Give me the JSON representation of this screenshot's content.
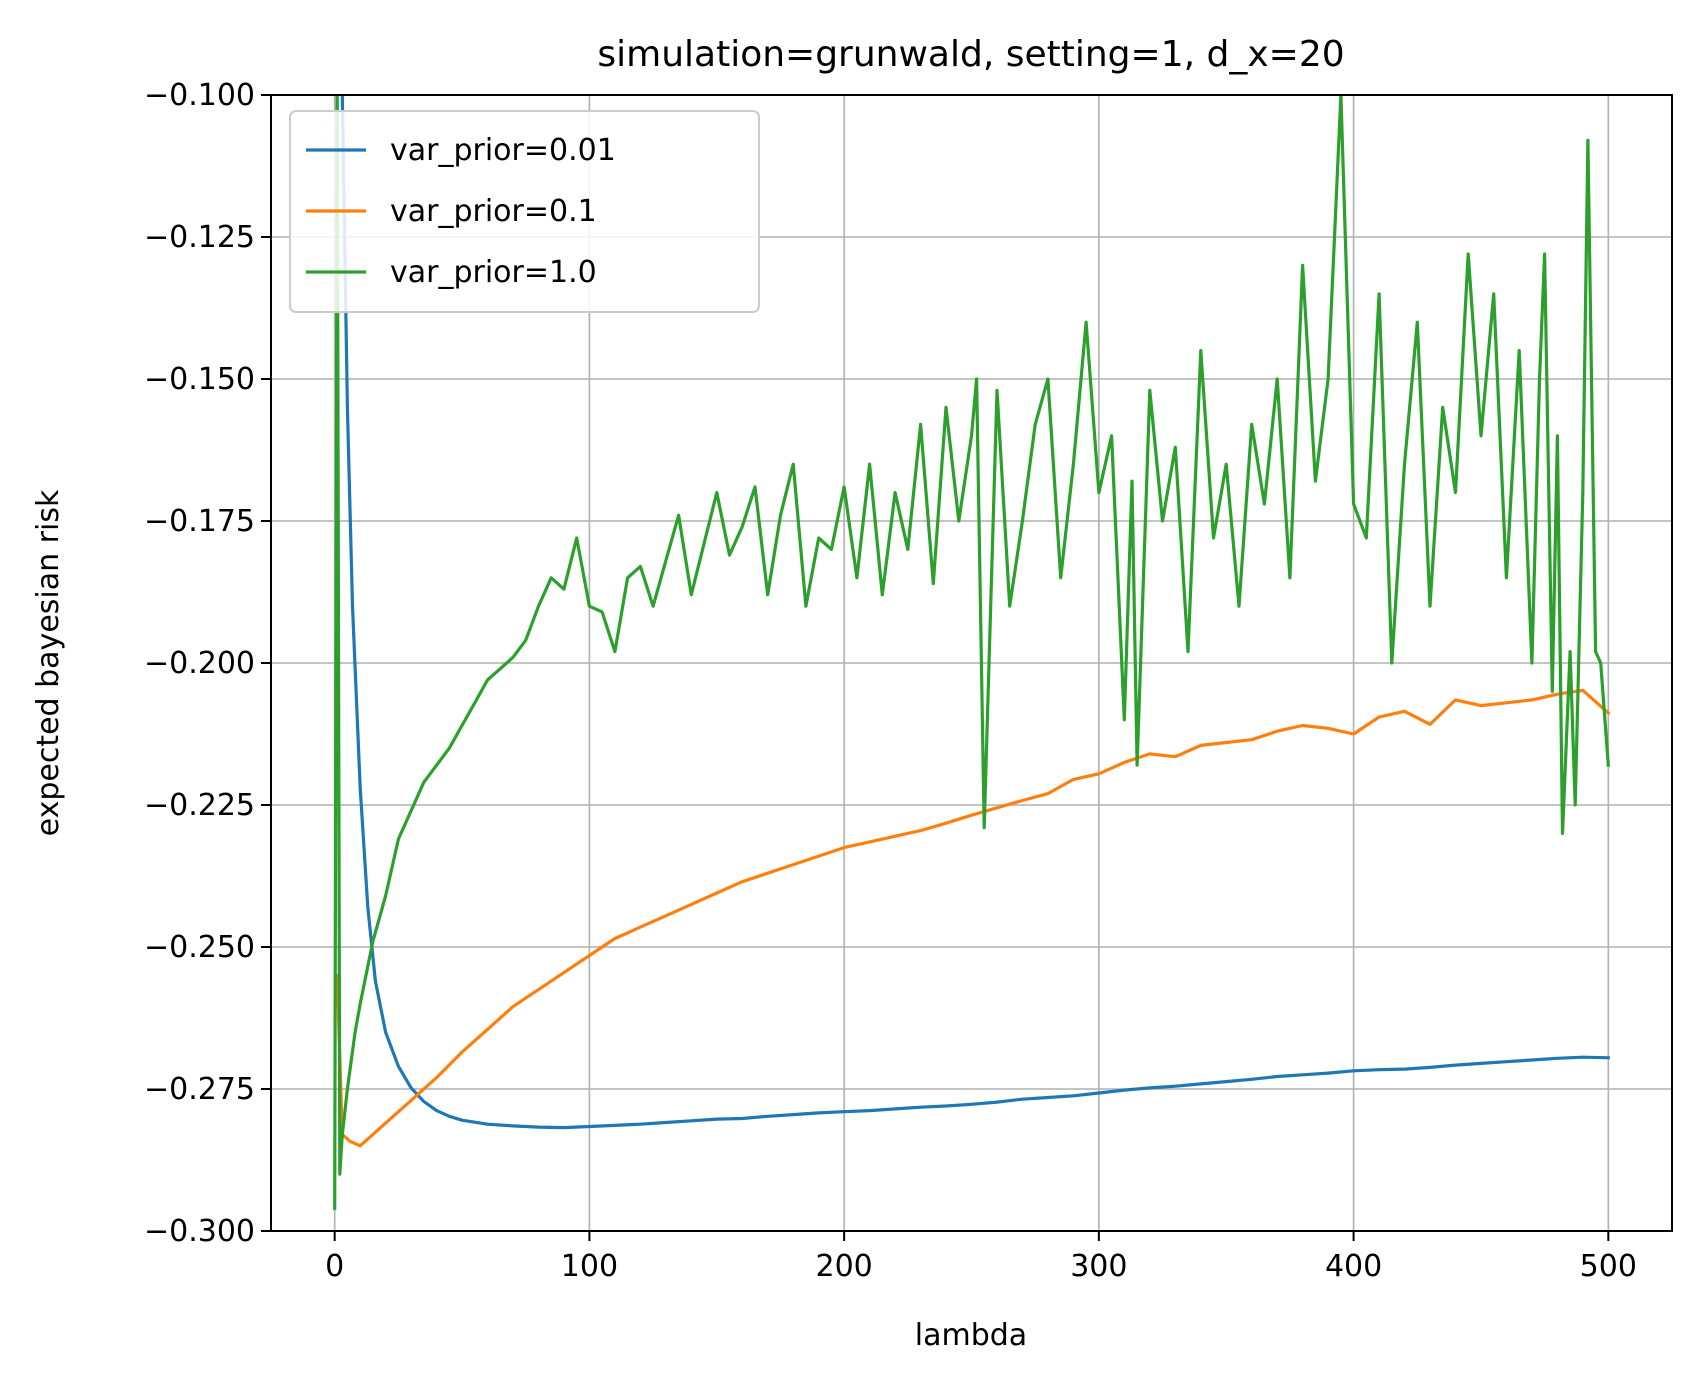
{
  "chart_data": {
    "type": "line",
    "title": "simulation=grunwald, setting=1, d_x=20",
    "xlabel": "lambda",
    "ylabel": "expected bayesian risk",
    "xlim": [
      -25,
      525
    ],
    "ylim": [
      -0.3,
      -0.1
    ],
    "xticks": [
      0,
      100,
      200,
      300,
      400,
      500
    ],
    "xtick_labels": [
      "0",
      "100",
      "200",
      "300",
      "400",
      "500"
    ],
    "yticks": [
      -0.3,
      -0.275,
      -0.25,
      -0.225,
      -0.2,
      -0.175,
      -0.15,
      -0.125,
      -0.1
    ],
    "ytick_labels": [
      "−0.300",
      "−0.275",
      "−0.250",
      "−0.225",
      "−0.200",
      "−0.175",
      "−0.150",
      "−0.125",
      "−0.100"
    ],
    "grid": true,
    "legend_position": "upper-left",
    "series": [
      {
        "name": "var_prior=0.01",
        "color": "#1f77b4",
        "x": [
          1,
          3,
          5,
          7,
          10,
          13,
          16,
          20,
          25,
          30,
          35,
          40,
          45,
          50,
          60,
          70,
          80,
          90,
          100,
          110,
          120,
          130,
          140,
          150,
          160,
          170,
          180,
          190,
          200,
          210,
          220,
          230,
          240,
          250,
          260,
          270,
          280,
          290,
          300,
          310,
          320,
          330,
          340,
          350,
          360,
          370,
          380,
          390,
          400,
          410,
          420,
          430,
          440,
          450,
          460,
          470,
          480,
          490,
          500
        ],
        "y": [
          -0.09,
          -0.1,
          -0.155,
          -0.19,
          -0.222,
          -0.243,
          -0.256,
          -0.265,
          -0.271,
          -0.2748,
          -0.2772,
          -0.2788,
          -0.2798,
          -0.2805,
          -0.2812,
          -0.2815,
          -0.2817,
          -0.2818,
          -0.2816,
          -0.2814,
          -0.2812,
          -0.2809,
          -0.2806,
          -0.2803,
          -0.2802,
          -0.2798,
          -0.2795,
          -0.2792,
          -0.279,
          -0.2788,
          -0.2785,
          -0.2782,
          -0.278,
          -0.2777,
          -0.2773,
          -0.2768,
          -0.2765,
          -0.2762,
          -0.2757,
          -0.2752,
          -0.2748,
          -0.2745,
          -0.2741,
          -0.2737,
          -0.2733,
          -0.2728,
          -0.2725,
          -0.2722,
          -0.2718,
          -0.2716,
          -0.2715,
          -0.2712,
          -0.2708,
          -0.2705,
          -0.2702,
          -0.2699,
          -0.2696,
          -0.2694,
          -0.2695
        ]
      },
      {
        "name": "var_prior=0.1",
        "color": "#ff7f0e",
        "x": [
          1,
          3,
          6,
          10,
          15,
          20,
          30,
          40,
          50,
          60,
          70,
          80,
          90,
          100,
          110,
          120,
          130,
          140,
          150,
          160,
          170,
          180,
          190,
          200,
          210,
          220,
          230,
          240,
          250,
          260,
          270,
          280,
          290,
          300,
          310,
          320,
          330,
          340,
          350,
          360,
          370,
          380,
          390,
          400,
          410,
          420,
          430,
          440,
          450,
          460,
          470,
          480,
          490,
          500
        ],
        "y": [
          -0.255,
          -0.283,
          -0.2842,
          -0.285,
          -0.283,
          -0.281,
          -0.277,
          -0.273,
          -0.2685,
          -0.2645,
          -0.2605,
          -0.2575,
          -0.2545,
          -0.2515,
          -0.2485,
          -0.2465,
          -0.2445,
          -0.2425,
          -0.2405,
          -0.2385,
          -0.237,
          -0.2355,
          -0.234,
          -0.2325,
          -0.2315,
          -0.2305,
          -0.2295,
          -0.2282,
          -0.2268,
          -0.2255,
          -0.2242,
          -0.223,
          -0.2205,
          -0.2195,
          -0.2175,
          -0.216,
          -0.2165,
          -0.2145,
          -0.214,
          -0.2135,
          -0.212,
          -0.211,
          -0.2115,
          -0.2125,
          -0.2095,
          -0.2085,
          -0.2108,
          -0.2065,
          -0.2075,
          -0.207,
          -0.2065,
          -0.2055,
          -0.2048,
          -0.2088
        ]
      },
      {
        "name": "var_prior=1.0",
        "color": "#2ca02c",
        "x": [
          0,
          1,
          2,
          3,
          5,
          8,
          10,
          15,
          20,
          25,
          30,
          35,
          40,
          45,
          50,
          55,
          60,
          65,
          70,
          75,
          80,
          85,
          90,
          95,
          100,
          105,
          110,
          115,
          120,
          125,
          130,
          135,
          140,
          145,
          150,
          155,
          160,
          165,
          170,
          175,
          180,
          185,
          190,
          195,
          200,
          205,
          210,
          215,
          220,
          225,
          230,
          235,
          240,
          245,
          250,
          252,
          255,
          260,
          265,
          270,
          275,
          280,
          285,
          290,
          295,
          300,
          305,
          310,
          313,
          315,
          320,
          325,
          330,
          335,
          340,
          345,
          350,
          355,
          360,
          365,
          370,
          375,
          380,
          385,
          390,
          395,
          400,
          405,
          410,
          415,
          420,
          425,
          430,
          435,
          440,
          445,
          450,
          455,
          460,
          465,
          470,
          473,
          475,
          478,
          480,
          482,
          485,
          487,
          490,
          492,
          495,
          497,
          500
        ],
        "y": [
          -0.296,
          -0.1,
          -0.29,
          -0.283,
          -0.275,
          -0.265,
          -0.26,
          -0.249,
          -0.241,
          -0.231,
          -0.226,
          -0.221,
          -0.218,
          -0.215,
          -0.211,
          -0.207,
          -0.203,
          -0.201,
          -0.199,
          -0.196,
          -0.19,
          -0.185,
          -0.187,
          -0.178,
          -0.19,
          -0.191,
          -0.198,
          -0.185,
          -0.183,
          -0.19,
          -0.182,
          -0.174,
          -0.188,
          -0.179,
          -0.17,
          -0.181,
          -0.176,
          -0.169,
          -0.188,
          -0.174,
          -0.165,
          -0.19,
          -0.178,
          -0.18,
          -0.169,
          -0.185,
          -0.165,
          -0.188,
          -0.17,
          -0.18,
          -0.158,
          -0.186,
          -0.155,
          -0.175,
          -0.16,
          -0.15,
          -0.229,
          -0.152,
          -0.19,
          -0.175,
          -0.158,
          -0.15,
          -0.185,
          -0.165,
          -0.14,
          -0.17,
          -0.16,
          -0.21,
          -0.168,
          -0.218,
          -0.152,
          -0.175,
          -0.162,
          -0.198,
          -0.145,
          -0.178,
          -0.165,
          -0.19,
          -0.158,
          -0.172,
          -0.15,
          -0.185,
          -0.13,
          -0.168,
          -0.15,
          -0.1,
          -0.172,
          -0.178,
          -0.135,
          -0.2,
          -0.165,
          -0.14,
          -0.19,
          -0.155,
          -0.17,
          -0.128,
          -0.16,
          -0.135,
          -0.185,
          -0.145,
          -0.2,
          -0.15,
          -0.128,
          -0.205,
          -0.16,
          -0.23,
          -0.198,
          -0.225,
          -0.17,
          -0.108,
          -0.198,
          -0.2,
          -0.218
        ]
      }
    ]
  }
}
